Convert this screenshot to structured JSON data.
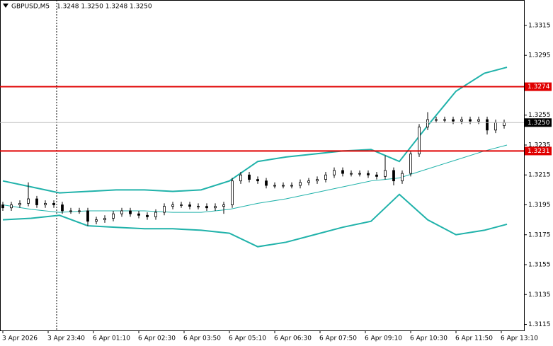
{
  "chart_data": {
    "type": "candlestick",
    "title": "GBPUSD,M5",
    "subtitle": "1.3248 1.3250 1.3248 1.3250",
    "xlim": [
      -1,
      184
    ],
    "ylim": [
      1.3111,
      1.3332
    ],
    "xticks": [
      {
        "value": 0,
        "label": "3 Apr 2026"
      },
      {
        "value": 16,
        "label": "3 Apr 23:40"
      },
      {
        "value": 32,
        "label": "6 Apr 01:10"
      },
      {
        "value": 48,
        "label": "6 Apr 02:30"
      },
      {
        "value": 64,
        "label": "6 Apr 03:50"
      },
      {
        "value": 80,
        "label": "6 Apr 05:10"
      },
      {
        "value": 96,
        "label": "6 Apr 06:30"
      },
      {
        "value": 112,
        "label": "6 Apr 07:50"
      },
      {
        "value": 128,
        "label": "6 Apr 09:10"
      },
      {
        "value": 144,
        "label": "6 Apr 10:30"
      },
      {
        "value": 160,
        "label": "6 Apr 11:50"
      },
      {
        "value": 176,
        "label": "6 Apr 13:10"
      }
    ],
    "yticks": [
      1.3315,
      1.3295,
      1.3255,
      1.3235,
      1.3215,
      1.3195,
      1.3175,
      1.3155,
      1.3135,
      1.3115
    ],
    "separator": 19,
    "ohlc": {
      "x": [
        0,
        3,
        6,
        9,
        12,
        15,
        18,
        21,
        24,
        27,
        30,
        33,
        36,
        39,
        42,
        45,
        48,
        51,
        54,
        57,
        60,
        63,
        66,
        69,
        72,
        75,
        78,
        81,
        84,
        87,
        90,
        93,
        96,
        99,
        102,
        105,
        108,
        111,
        114,
        117,
        120,
        123,
        126,
        129,
        132,
        135,
        138,
        141,
        144,
        147,
        150,
        153,
        156,
        159,
        162,
        165,
        168,
        171,
        174,
        177
      ],
      "open": [
        1.3195,
        1.3193,
        1.3195,
        1.3196,
        1.3199,
        1.3195,
        1.3196,
        1.3195,
        1.3191,
        1.3191,
        1.3191,
        1.3184,
        1.3185,
        1.3186,
        1.3189,
        1.3191,
        1.3189,
        1.3188,
        1.3187,
        1.319,
        1.3194,
        1.3195,
        1.3195,
        1.3194,
        1.3194,
        1.3193,
        1.3194,
        1.3195,
        1.3211,
        1.3215,
        1.3212,
        1.3211,
        1.3208,
        1.3208,
        1.3208,
        1.3208,
        1.321,
        1.3211,
        1.3212,
        1.3215,
        1.3218,
        1.3216,
        1.3216,
        1.3216,
        1.3215,
        1.3214,
        1.3218,
        1.3211,
        1.3216,
        1.3229,
        1.3247,
        1.3252,
        1.3252,
        1.3252,
        1.3251,
        1.3252,
        1.3251,
        1.3252,
        1.3245,
        1.3248
      ],
      "high": [
        1.3197,
        1.3197,
        1.3198,
        1.321,
        1.3201,
        1.3198,
        1.3198,
        1.3197,
        1.3193,
        1.3193,
        1.3193,
        1.3187,
        1.3188,
        1.3191,
        1.3193,
        1.3193,
        1.3191,
        1.319,
        1.3192,
        1.3196,
        1.3197,
        1.3197,
        1.3197,
        1.3196,
        1.3196,
        1.3196,
        1.3197,
        1.3213,
        1.3217,
        1.3217,
        1.3214,
        1.3213,
        1.321,
        1.321,
        1.321,
        1.3212,
        1.3213,
        1.3214,
        1.3217,
        1.322,
        1.322,
        1.3218,
        1.3218,
        1.3218,
        1.3217,
        1.3228,
        1.322,
        1.3218,
        1.3231,
        1.3249,
        1.3257,
        1.3254,
        1.3254,
        1.3254,
        1.3254,
        1.3254,
        1.3254,
        1.3254,
        1.3252,
        1.3252
      ],
      "low": [
        1.3191,
        1.3191,
        1.3193,
        1.3194,
        1.3193,
        1.3193,
        1.3193,
        1.3189,
        1.3189,
        1.3189,
        1.3181,
        1.3182,
        1.3183,
        1.3184,
        1.3187,
        1.3187,
        1.3186,
        1.3185,
        1.3185,
        1.3188,
        1.3192,
        1.3193,
        1.3192,
        1.3192,
        1.3191,
        1.3191,
        1.3189,
        1.3193,
        1.3209,
        1.321,
        1.3209,
        1.3206,
        1.3206,
        1.3206,
        1.3206,
        1.3206,
        1.3208,
        1.3209,
        1.321,
        1.3213,
        1.3214,
        1.3214,
        1.3214,
        1.3213,
        1.3212,
        1.3212,
        1.3208,
        1.3209,
        1.3214,
        1.3227,
        1.3245,
        1.325,
        1.325,
        1.3249,
        1.3249,
        1.3249,
        1.3249,
        1.3242,
        1.3243,
        1.3246
      ],
      "close": [
        1.3193,
        1.3195,
        1.3196,
        1.3199,
        1.3195,
        1.3196,
        1.3195,
        1.3191,
        1.3191,
        1.3191,
        1.3184,
        1.3185,
        1.3186,
        1.3189,
        1.3191,
        1.3189,
        1.3188,
        1.3187,
        1.319,
        1.3194,
        1.3195,
        1.3195,
        1.3194,
        1.3194,
        1.3193,
        1.3194,
        1.3195,
        1.3211,
        1.3215,
        1.3212,
        1.3211,
        1.3208,
        1.3208,
        1.3208,
        1.3208,
        1.321,
        1.3211,
        1.3212,
        1.3215,
        1.3218,
        1.3216,
        1.3216,
        1.3216,
        1.3215,
        1.3214,
        1.3218,
        1.3211,
        1.3216,
        1.3229,
        1.3247,
        1.3252,
        1.3252,
        1.3252,
        1.3251,
        1.3252,
        1.3251,
        1.3252,
        1.3245,
        1.325,
        1.325
      ]
    },
    "bands": {
      "x": [
        0,
        10,
        20,
        30,
        40,
        50,
        60,
        70,
        80,
        90,
        100,
        110,
        120,
        130,
        140,
        150,
        160,
        170,
        178
      ],
      "series": [
        {
          "color": "#20b2aa",
          "width": 2,
          "values": [
            1.3211,
            1.3207,
            1.3203,
            1.3204,
            1.3205,
            1.3205,
            1.3204,
            1.3205,
            1.3211,
            1.3224,
            1.3227,
            1.3229,
            1.3231,
            1.3232,
            1.3224,
            1.3248,
            1.3271,
            1.3283,
            1.3287
          ]
        },
        {
          "color": "#20b2aa",
          "width": 1,
          "values": [
            1.3195,
            1.3192,
            1.319,
            1.3191,
            1.3191,
            1.3191,
            1.319,
            1.319,
            1.3192,
            1.3196,
            1.3199,
            1.3203,
            1.3207,
            1.3211,
            1.3213,
            1.3219,
            1.3225,
            1.3231,
            1.3235
          ]
        },
        {
          "color": "#20b2aa",
          "width": 2,
          "values": [
            1.3185,
            1.3186,
            1.3188,
            1.3181,
            1.318,
            1.3179,
            1.3179,
            1.3178,
            1.3176,
            1.3167,
            1.317,
            1.3175,
            1.318,
            1.3184,
            1.3202,
            1.3185,
            1.3175,
            1.3178,
            1.3182
          ]
        }
      ]
    },
    "levels": [
      {
        "value": 1.3274,
        "color": "#e00000"
      },
      {
        "value": 1.3231,
        "color": "#e00000"
      }
    ],
    "current_price": {
      "value": 1.325,
      "label": "1.3250"
    }
  }
}
